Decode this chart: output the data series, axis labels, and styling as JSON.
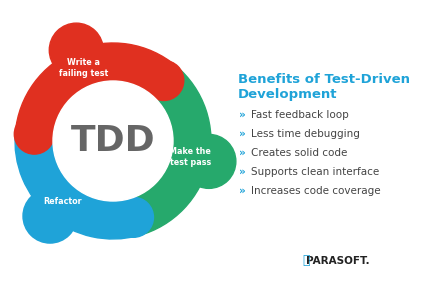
{
  "bg_color": "#ffffff",
  "center_text": "TDD",
  "tdd_color": "#666666",
  "red_color": "#e03020",
  "green_color": "#26a96c",
  "blue_color": "#1fa3d8",
  "white_color": "#ffffff",
  "benefits_title": "Benefits of Test-Driven\nDevelopment",
  "benefits_title_color": "#1fa3d8",
  "bullets": [
    "Fast feedback loop",
    "Less time debugging",
    "Creates solid code",
    "Supports clean interface",
    "Increases code coverage"
  ],
  "bullet_marker_color": "#1fa3d8",
  "bullet_text_color": "#444444",
  "parasoft_color": "#222222",
  "label_write": "Write a\nfailing test",
  "label_make": "Make the\ntest pass",
  "label_refactor": "Refactor"
}
